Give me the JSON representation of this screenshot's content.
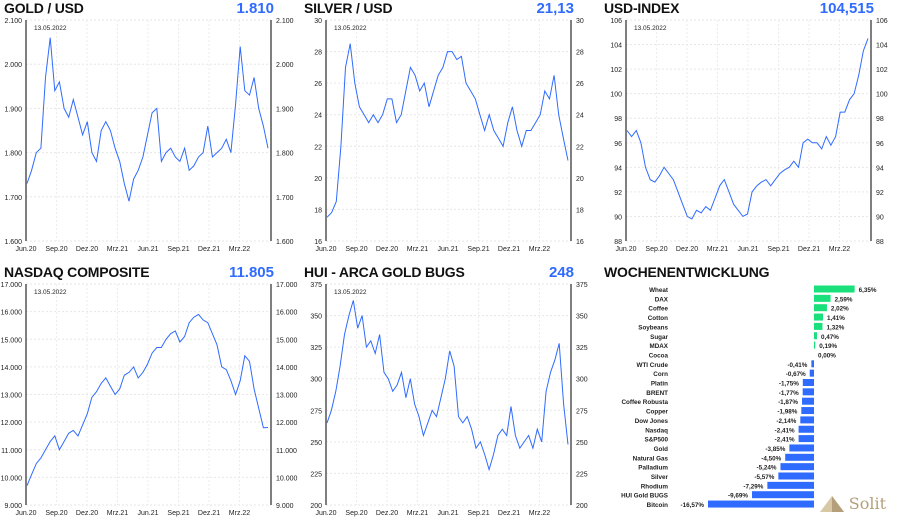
{
  "logo_text": "Solit",
  "colors": {
    "line": "#2f6bff",
    "positive": "#19e07a",
    "negative": "#2f6bff",
    "title": "#111111",
    "last": "#2f6bff"
  },
  "chart_data": [
    {
      "type": "line",
      "title": "GOLD / USD",
      "last": "1.810",
      "date_label": "13.05.2022",
      "ylim": [
        1600,
        2100
      ],
      "yticks": [
        "1.600",
        "1.700",
        "1.800",
        "1.900",
        "2.000",
        "2.100"
      ],
      "xticks": [
        "Jun.20",
        "Sep.20",
        "Dez.20",
        "Mrz.21",
        "Jun.21",
        "Sep.21",
        "Dez.21",
        "Mrz.22"
      ],
      "values": [
        1730,
        1760,
        1800,
        1810,
        1970,
        2060,
        1940,
        1960,
        1900,
        1880,
        1920,
        1880,
        1840,
        1870,
        1800,
        1780,
        1850,
        1870,
        1850,
        1810,
        1780,
        1730,
        1690,
        1740,
        1760,
        1790,
        1840,
        1890,
        1900,
        1780,
        1800,
        1810,
        1790,
        1780,
        1810,
        1760,
        1770,
        1790,
        1800,
        1860,
        1790,
        1800,
        1810,
        1830,
        1800,
        1910,
        2040,
        1940,
        1930,
        1970,
        1900,
        1860,
        1810
      ]
    },
    {
      "type": "line",
      "title": "SILVER / USD",
      "last": "21,13",
      "date_label": "13.05.2022",
      "ylim": [
        16,
        30
      ],
      "yticks": [
        "16",
        "18",
        "20",
        "22",
        "24",
        "26",
        "28",
        "30"
      ],
      "xticks": [
        "Jun.20",
        "Sep.20",
        "Dez.20",
        "Mrz.21",
        "Jun.21",
        "Sep.21",
        "Dez.21",
        "Mrz.22"
      ],
      "values": [
        17.5,
        17.8,
        18.5,
        22,
        27,
        28.5,
        26,
        24.5,
        24,
        23.5,
        24,
        23.5,
        24,
        25,
        25,
        23.5,
        24,
        25.5,
        27,
        26.5,
        25.5,
        26,
        24.5,
        25.5,
        26.5,
        27,
        28,
        28,
        27.5,
        27.7,
        26,
        25.5,
        25,
        24,
        23,
        24,
        23,
        22.5,
        22,
        23.5,
        24.5,
        23,
        22,
        23,
        23,
        23.5,
        24,
        25.5,
        25,
        26.5,
        24,
        22.5,
        21.1
      ]
    },
    {
      "type": "line",
      "title": "USD-INDEX",
      "last": "104,515",
      "date_label": "13.05.2022",
      "ylim": [
        88,
        106
      ],
      "yticks": [
        "88",
        "90",
        "92",
        "94",
        "96",
        "98",
        "100",
        "102",
        "104",
        "106"
      ],
      "xticks": [
        "Jun.20",
        "Sep.20",
        "Dez.20",
        "Mrz.21",
        "Jun.21",
        "Sep.21",
        "Dez.21",
        "Mrz.22"
      ],
      "values": [
        97,
        96.5,
        97,
        96,
        94,
        93,
        92.8,
        93.3,
        94,
        93.5,
        93,
        92,
        91,
        90,
        89.8,
        90.5,
        90.3,
        90.8,
        90.5,
        91.5,
        92.5,
        93,
        92,
        91,
        90.5,
        90,
        90.2,
        92,
        92.5,
        92.8,
        93,
        92.5,
        93,
        93.5,
        93.8,
        94,
        94.5,
        94,
        96,
        96.3,
        96,
        96,
        95.5,
        96.5,
        95.8,
        96.5,
        98.5,
        98.5,
        99.5,
        100,
        101.5,
        103.5,
        104.5
      ]
    },
    {
      "type": "line",
      "title": "NASDAQ COMPOSITE",
      "last": "11.805",
      "date_label": "13.05.2022",
      "ylim": [
        9000,
        17000
      ],
      "yticks": [
        "9.000",
        "10.000",
        "11.000",
        "12.000",
        "13.000",
        "14.000",
        "15.000",
        "16.000",
        "17.000"
      ],
      "xticks": [
        "Jun.20",
        "Sep.20",
        "Dez.20",
        "Mrz.21",
        "Jun.21",
        "Sep.21",
        "Dez.21",
        "Mrz.22"
      ],
      "values": [
        9700,
        10100,
        10500,
        10700,
        11000,
        11300,
        11500,
        11000,
        11300,
        11600,
        11700,
        11500,
        11900,
        12300,
        12900,
        13100,
        13400,
        13600,
        13300,
        13000,
        13200,
        13700,
        13800,
        14000,
        13600,
        13800,
        14100,
        14500,
        14700,
        14700,
        15000,
        15200,
        15300,
        14900,
        15100,
        15600,
        15800,
        15900,
        15700,
        15600,
        15200,
        14800,
        14000,
        13900,
        13500,
        13000,
        13500,
        14400,
        14200,
        13200,
        12500,
        11800,
        11805
      ]
    },
    {
      "type": "line",
      "title": "HUI - ARCA GOLD BUGS",
      "last": "248",
      "date_label": "13.05.2022",
      "ylim": [
        200,
        375
      ],
      "yticks": [
        "200",
        "225",
        "250",
        "275",
        "300",
        "325",
        "350",
        "375"
      ],
      "xticks": [
        "Jun.20",
        "Sep.20",
        "Dez.20",
        "Mrz.21",
        "Jun.21",
        "Sep.21",
        "Dez.21",
        "Mrz.22"
      ],
      "values": [
        265,
        275,
        290,
        310,
        335,
        350,
        362,
        340,
        350,
        325,
        330,
        320,
        335,
        305,
        300,
        290,
        295,
        305,
        285,
        300,
        280,
        270,
        255,
        265,
        275,
        270,
        285,
        300,
        322,
        310,
        270,
        265,
        270,
        260,
        245,
        250,
        240,
        228,
        240,
        255,
        260,
        255,
        278,
        255,
        245,
        250,
        255,
        245,
        260,
        250,
        290,
        305,
        315,
        328,
        280,
        248
      ]
    },
    {
      "type": "bar",
      "title": "WOCHENENTWICKLUNG",
      "orientation": "horizontal",
      "categories": [
        "Wheat",
        "DAX",
        "Coffee",
        "Cotton",
        "Soybeans",
        "Sugar",
        "MDAX",
        "Cocoa",
        "WTI Crude",
        "Corn",
        "Platin",
        "BRENT",
        "Coffee Robusta",
        "Copper",
        "Dow Jones",
        "Nasdaq",
        "S&P500",
        "Gold",
        "Natural Gas",
        "Palladium",
        "Silver",
        "Rhodium",
        "HUI Gold BUGS",
        "Bitcoin"
      ],
      "values": [
        6.35,
        2.59,
        2.02,
        1.41,
        1.32,
        0.47,
        0.19,
        0.0,
        -0.41,
        -0.67,
        -1.75,
        -1.77,
        -1.87,
        -1.98,
        -2.14,
        -2.41,
        -2.41,
        -3.85,
        -4.5,
        -5.24,
        -5.57,
        -7.29,
        -9.69,
        -16.57
      ],
      "labels": [
        "6,35%",
        "2,59%",
        "2,02%",
        "1,41%",
        "1,32%",
        "0,47%",
        "0,19%",
        "0,00%",
        "-0,41%",
        "-0,67%",
        "-1,75%",
        "-1,77%",
        "-1,87%",
        "-1,98%",
        "-2,14%",
        "-2,41%",
        "-2,41%",
        "-3,85%",
        "-4,50%",
        "-5,24%",
        "-5,57%",
        "-7,29%",
        "-9,69%",
        "-16,57%"
      ]
    }
  ]
}
